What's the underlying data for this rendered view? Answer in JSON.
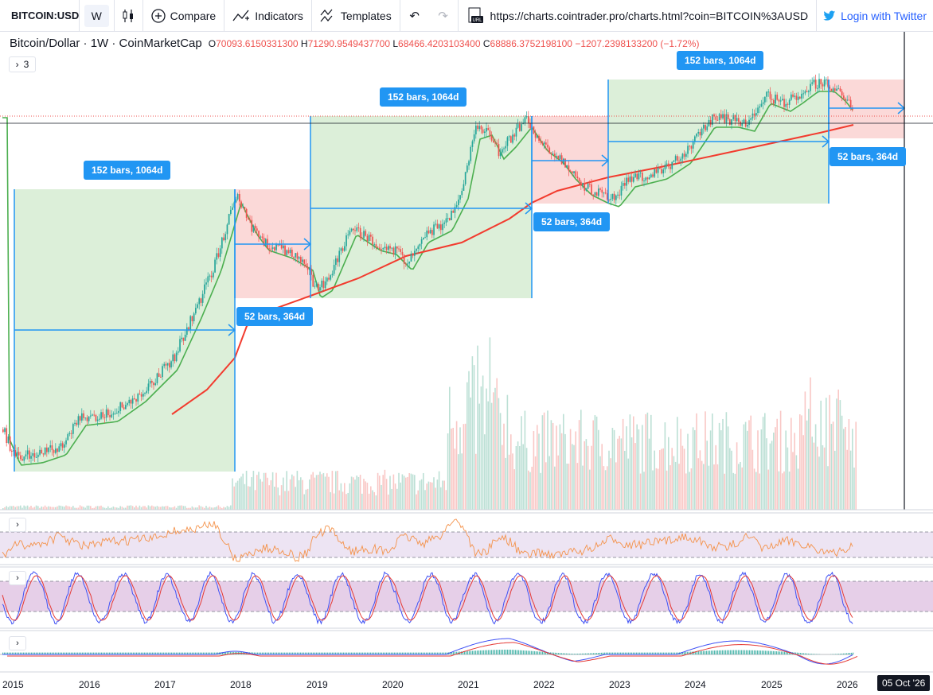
{
  "toolbar": {
    "symbol": "BITCOIN:USD",
    "interval": "W",
    "compare_label": "Compare",
    "indicators_label": "Indicators",
    "templates_label": "Templates",
    "url": "https://charts.cointrader.pro/charts.html?coin=BITCOIN%3AUSD",
    "login_label": "Login with Twitter"
  },
  "legend": {
    "title": "Bitcoin/Dollar · 1W · CoinMarketCap",
    "o_label": "O",
    "o_value": "70093.6150331300",
    "h_label": "H",
    "h_value": "71290.9549437700",
    "l_label": "L",
    "l_value": "68466.4203103400",
    "c_label": "C",
    "c_value": "68886.3752198100",
    "change": "−1207.2398133200 (−1.72%)",
    "collapsed_count": "3"
  },
  "measurements": [
    {
      "label": "152 bars, 1064d",
      "color": "green"
    },
    {
      "label": "52 bars, 364d",
      "color": "red"
    },
    {
      "label": "152 bars, 1064d",
      "color": "green"
    },
    {
      "label": "52 bars, 364d",
      "color": "red"
    },
    {
      "label": "152 bars, 1064d",
      "color": "green"
    },
    {
      "label": "52 bars, 364d",
      "color": "red"
    }
  ],
  "x_axis": {
    "labels": [
      "2015",
      "2016",
      "2017",
      "2018",
      "2019",
      "2020",
      "2021",
      "2022",
      "2023",
      "2024",
      "2025",
      "2026"
    ],
    "crosshair_date": "05 Oct '26"
  },
  "colors": {
    "up": "#26a69a",
    "down": "#ef5350",
    "ma_short": "#4caf50",
    "ma_long": "#f23b2e",
    "measure_blue": "#2196f3",
    "green_zone": "#dcefd9",
    "red_zone": "#fbd9d8"
  }
}
